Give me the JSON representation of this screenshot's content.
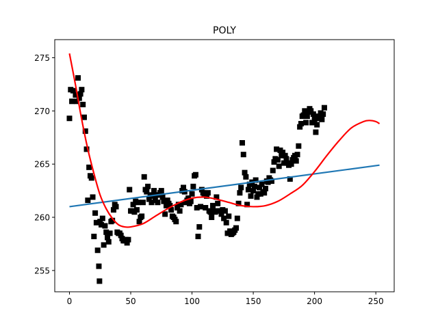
{
  "chart_data": {
    "type": "scatter",
    "title": "POLY",
    "xlabel": "",
    "ylabel": "",
    "xlim": [
      -12,
      265
    ],
    "ylim": [
      253,
      276.7
    ],
    "grid": false,
    "x_ticks": [
      0,
      50,
      100,
      150,
      200,
      250
    ],
    "y_ticks": [
      255,
      260,
      265,
      270,
      275
    ],
    "colors": {
      "scatter": "#000000",
      "linear_fit": "#1f77b4",
      "poly_fit": "#ff0000"
    },
    "scatter_points": [
      [
        0,
        269.3
      ],
      [
        1,
        272
      ],
      [
        2,
        270.9
      ],
      [
        3,
        271.9
      ],
      [
        5,
        271.5
      ],
      [
        6,
        270.9
      ],
      [
        7,
        273.1
      ],
      [
        8,
        271.2
      ],
      [
        9,
        271.6
      ],
      [
        10,
        272
      ],
      [
        11,
        270.6
      ],
      [
        12,
        269.4
      ],
      [
        13,
        268.1
      ],
      [
        14,
        266.4
      ],
      [
        15,
        261.6
      ],
      [
        16,
        264.7
      ],
      [
        17,
        263.9
      ],
      [
        18,
        263.7
      ],
      [
        19,
        261.9
      ],
      [
        20,
        258.2
      ],
      [
        21,
        260.4
      ],
      [
        22,
        259.5
      ],
      [
        23,
        256.9
      ],
      [
        24,
        255.4
      ],
      [
        24.5,
        254
      ],
      [
        25,
        259.6
      ],
      [
        26,
        259.3
      ],
      [
        27,
        259.9
      ],
      [
        28,
        257.4
      ],
      [
        29,
        259.2
      ],
      [
        30,
        258.6
      ],
      [
        31,
        258.1
      ],
      [
        32,
        257.7
      ],
      [
        33,
        258.5
      ],
      [
        34,
        259.6
      ],
      [
        35,
        259.7
      ],
      [
        36,
        260.7
      ],
      [
        37,
        261.2
      ],
      [
        38,
        261
      ],
      [
        39,
        258.6
      ],
      [
        40,
        258.5
      ],
      [
        41,
        258.5
      ],
      [
        42,
        258.3
      ],
      [
        43,
        258
      ],
      [
        44,
        257.8
      ],
      [
        45,
        257.8
      ],
      [
        46,
        257.9
      ],
      [
        47,
        257.6
      ],
      [
        48,
        257.9
      ],
      [
        49,
        262.6
      ],
      [
        50,
        260.6
      ],
      [
        51,
        260.6
      ],
      [
        52,
        261.2
      ],
      [
        53,
        260.5
      ],
      [
        54,
        261.5
      ],
      [
        55,
        260.7
      ],
      [
        56,
        261.4
      ],
      [
        57,
        259.6
      ],
      [
        58,
        260
      ],
      [
        59,
        260.1
      ],
      [
        60,
        261.4
      ],
      [
        61,
        263.8
      ],
      [
        62,
        262.6
      ],
      [
        63,
        262.4
      ],
      [
        64,
        262.9
      ],
      [
        65,
        261.7
      ],
      [
        66,
        262.1
      ],
      [
        67,
        261.4
      ],
      [
        68,
        262
      ],
      [
        69,
        262.5
      ],
      [
        70,
        261.6
      ],
      [
        71,
        262.1
      ],
      [
        72,
        261.4
      ],
      [
        73,
        262.1
      ],
      [
        74,
        262.3
      ],
      [
        75,
        262.5
      ],
      [
        76,
        261.9
      ],
      [
        77,
        261.5
      ],
      [
        78,
        260.3
      ],
      [
        79,
        261.1
      ],
      [
        80,
        261.6
      ],
      [
        81,
        261.3
      ],
      [
        82,
        261.1
      ],
      [
        83,
        260.7
      ],
      [
        84,
        260.1
      ],
      [
        85,
        260
      ],
      [
        86,
        259.8
      ],
      [
        87,
        259.6
      ],
      [
        88,
        260.9
      ],
      [
        89,
        261.2
      ],
      [
        90,
        260.6
      ],
      [
        91,
        261.2
      ],
      [
        92,
        262.5
      ],
      [
        93,
        262.8
      ],
      [
        94,
        262.4
      ],
      [
        95,
        261.4
      ],
      [
        96,
        261.6
      ],
      [
        97,
        261.8
      ],
      [
        98,
        261.3
      ],
      [
        99,
        261.5
      ],
      [
        100,
        262.2
      ],
      [
        101,
        262.9
      ],
      [
        102,
        263.9
      ],
      [
        103,
        264
      ],
      [
        104,
        260.9
      ],
      [
        105,
        258.2
      ],
      [
        106,
        259.1
      ],
      [
        107,
        261
      ],
      [
        108,
        262.6
      ],
      [
        109,
        262.3
      ],
      [
        110,
        262.2
      ],
      [
        111,
        260.9
      ],
      [
        112,
        262
      ],
      [
        113,
        262.3
      ],
      [
        114,
        260.6
      ],
      [
        115,
        260.5
      ],
      [
        116,
        260
      ],
      [
        117,
        261.1
      ],
      [
        118,
        260.6
      ],
      [
        119,
        260.5
      ],
      [
        120,
        261.9
      ],
      [
        121,
        261.3
      ],
      [
        122,
        260.6
      ],
      [
        123,
        260.6
      ],
      [
        124,
        260.3
      ],
      [
        125,
        260.7
      ],
      [
        126,
        259.9
      ],
      [
        127,
        260.6
      ],
      [
        128,
        259.5
      ],
      [
        129,
        258.5
      ],
      [
        130,
        260.1
      ],
      [
        131,
        258.7
      ],
      [
        132,
        258.4
      ],
      [
        133,
        258.5
      ],
      [
        134,
        258.6
      ],
      [
        135,
        258.8
      ],
      [
        136,
        259
      ],
      [
        137,
        259.9
      ],
      [
        138,
        261.3
      ],
      [
        139,
        262.3
      ],
      [
        140,
        262.8
      ],
      [
        141,
        267
      ],
      [
        142,
        265.9
      ],
      [
        143,
        264.2
      ],
      [
        144,
        263.8
      ],
      [
        145,
        261.2
      ],
      [
        146,
        262.6
      ],
      [
        147,
        263.1
      ],
      [
        148,
        262
      ],
      [
        149,
        263.3
      ],
      [
        150,
        262.5
      ],
      [
        151,
        262.9
      ],
      [
        152,
        263.5
      ],
      [
        153,
        261.9
      ],
      [
        154,
        262.2
      ],
      [
        155,
        262.8
      ],
      [
        156,
        262.2
      ],
      [
        157,
        263.1
      ],
      [
        158,
        262.4
      ],
      [
        159,
        262.3
      ],
      [
        160,
        262.7
      ],
      [
        161,
        263.4
      ],
      [
        162,
        263.3
      ],
      [
        163,
        263.7
      ],
      [
        164,
        263.5
      ],
      [
        165,
        263.4
      ],
      [
        166,
        264.4
      ],
      [
        167,
        265.2
      ],
      [
        168,
        265.5
      ],
      [
        169,
        266.4
      ],
      [
        170,
        265.4
      ],
      [
        171,
        264.8
      ],
      [
        172,
        266.3
      ],
      [
        173,
        265.8
      ],
      [
        174,
        266.1
      ],
      [
        175,
        265.1
      ],
      [
        176,
        265.8
      ],
      [
        177,
        265.5
      ],
      [
        178,
        265.1
      ],
      [
        179,
        264.9
      ],
      [
        180,
        263.6
      ],
      [
        181,
        265
      ],
      [
        182,
        265.4
      ],
      [
        183,
        265.6
      ],
      [
        184,
        265.8
      ],
      [
        185,
        265.3
      ],
      [
        186,
        265.9
      ],
      [
        187,
        266.7
      ],
      [
        188,
        268.5
      ],
      [
        189,
        268.8
      ],
      [
        190,
        269.5
      ],
      [
        191,
        269.6
      ],
      [
        192,
        270
      ],
      [
        193,
        268.9
      ],
      [
        194,
        269.5
      ],
      [
        195,
        269.9
      ],
      [
        196,
        270.2
      ],
      [
        197,
        270
      ],
      [
        198,
        268.9
      ],
      [
        199,
        269.7
      ],
      [
        200,
        269.2
      ],
      [
        201,
        268
      ],
      [
        202,
        268.7
      ],
      [
        203,
        269.5
      ],
      [
        204,
        269.3
      ],
      [
        205,
        269.8
      ],
      [
        206,
        269.2
      ],
      [
        207,
        269.7
      ],
      [
        208,
        270.3
      ]
    ],
    "linear_fit": {
      "x": [
        0,
        253
      ],
      "y": [
        261.0,
        264.9
      ]
    },
    "poly_fit": {
      "x": [
        0,
        5,
        10,
        15,
        20,
        25,
        30,
        35,
        40,
        45,
        50,
        60,
        70,
        80,
        90,
        100,
        110,
        120,
        130,
        140,
        150,
        160,
        170,
        180,
        190,
        200,
        210,
        220,
        230,
        240,
        245,
        250,
        253
      ],
      "y": [
        275.4,
        272.4,
        269.2,
        266.4,
        264.1,
        262.1,
        260.8,
        259.9,
        259.3,
        259.1,
        259.1,
        259.4,
        260.1,
        260.8,
        261.4,
        261.8,
        261.9,
        261.7,
        261.4,
        261.1,
        261.0,
        261.1,
        261.5,
        262.2,
        263.0,
        264.3,
        265.8,
        267.2,
        268.4,
        269.0,
        269.1,
        269.0,
        268.8
      ]
    }
  }
}
